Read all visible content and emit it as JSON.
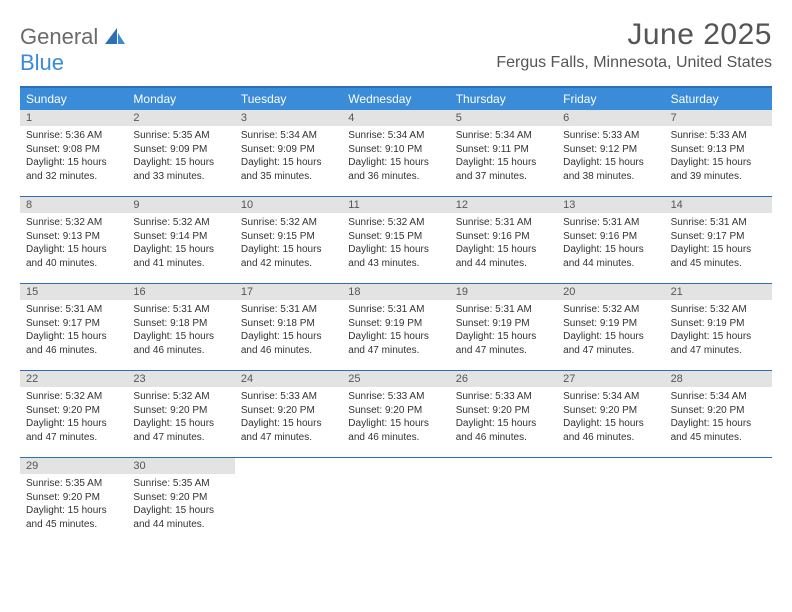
{
  "logo": {
    "text1": "General",
    "text2": "Blue"
  },
  "title": "June 2025",
  "location": "Fergus Falls, Minnesota, United States",
  "colors": {
    "header_bg": "#3a8bd8",
    "border": "#2d6fb5",
    "daynum_bg": "#e3e3e3",
    "text": "#333333",
    "title_text": "#555555"
  },
  "dows": [
    "Sunday",
    "Monday",
    "Tuesday",
    "Wednesday",
    "Thursday",
    "Friday",
    "Saturday"
  ],
  "weeks": [
    [
      {
        "n": "1",
        "sr": "5:36 AM",
        "ss": "9:08 PM",
        "dl": "15 hours and 32 minutes."
      },
      {
        "n": "2",
        "sr": "5:35 AM",
        "ss": "9:09 PM",
        "dl": "15 hours and 33 minutes."
      },
      {
        "n": "3",
        "sr": "5:34 AM",
        "ss": "9:09 PM",
        "dl": "15 hours and 35 minutes."
      },
      {
        "n": "4",
        "sr": "5:34 AM",
        "ss": "9:10 PM",
        "dl": "15 hours and 36 minutes."
      },
      {
        "n": "5",
        "sr": "5:34 AM",
        "ss": "9:11 PM",
        "dl": "15 hours and 37 minutes."
      },
      {
        "n": "6",
        "sr": "5:33 AM",
        "ss": "9:12 PM",
        "dl": "15 hours and 38 minutes."
      },
      {
        "n": "7",
        "sr": "5:33 AM",
        "ss": "9:13 PM",
        "dl": "15 hours and 39 minutes."
      }
    ],
    [
      {
        "n": "8",
        "sr": "5:32 AM",
        "ss": "9:13 PM",
        "dl": "15 hours and 40 minutes."
      },
      {
        "n": "9",
        "sr": "5:32 AM",
        "ss": "9:14 PM",
        "dl": "15 hours and 41 minutes."
      },
      {
        "n": "10",
        "sr": "5:32 AM",
        "ss": "9:15 PM",
        "dl": "15 hours and 42 minutes."
      },
      {
        "n": "11",
        "sr": "5:32 AM",
        "ss": "9:15 PM",
        "dl": "15 hours and 43 minutes."
      },
      {
        "n": "12",
        "sr": "5:31 AM",
        "ss": "9:16 PM",
        "dl": "15 hours and 44 minutes."
      },
      {
        "n": "13",
        "sr": "5:31 AM",
        "ss": "9:16 PM",
        "dl": "15 hours and 44 minutes."
      },
      {
        "n": "14",
        "sr": "5:31 AM",
        "ss": "9:17 PM",
        "dl": "15 hours and 45 minutes."
      }
    ],
    [
      {
        "n": "15",
        "sr": "5:31 AM",
        "ss": "9:17 PM",
        "dl": "15 hours and 46 minutes."
      },
      {
        "n": "16",
        "sr": "5:31 AM",
        "ss": "9:18 PM",
        "dl": "15 hours and 46 minutes."
      },
      {
        "n": "17",
        "sr": "5:31 AM",
        "ss": "9:18 PM",
        "dl": "15 hours and 46 minutes."
      },
      {
        "n": "18",
        "sr": "5:31 AM",
        "ss": "9:19 PM",
        "dl": "15 hours and 47 minutes."
      },
      {
        "n": "19",
        "sr": "5:31 AM",
        "ss": "9:19 PM",
        "dl": "15 hours and 47 minutes."
      },
      {
        "n": "20",
        "sr": "5:32 AM",
        "ss": "9:19 PM",
        "dl": "15 hours and 47 minutes."
      },
      {
        "n": "21",
        "sr": "5:32 AM",
        "ss": "9:19 PM",
        "dl": "15 hours and 47 minutes."
      }
    ],
    [
      {
        "n": "22",
        "sr": "5:32 AM",
        "ss": "9:20 PM",
        "dl": "15 hours and 47 minutes."
      },
      {
        "n": "23",
        "sr": "5:32 AM",
        "ss": "9:20 PM",
        "dl": "15 hours and 47 minutes."
      },
      {
        "n": "24",
        "sr": "5:33 AM",
        "ss": "9:20 PM",
        "dl": "15 hours and 47 minutes."
      },
      {
        "n": "25",
        "sr": "5:33 AM",
        "ss": "9:20 PM",
        "dl": "15 hours and 46 minutes."
      },
      {
        "n": "26",
        "sr": "5:33 AM",
        "ss": "9:20 PM",
        "dl": "15 hours and 46 minutes."
      },
      {
        "n": "27",
        "sr": "5:34 AM",
        "ss": "9:20 PM",
        "dl": "15 hours and 46 minutes."
      },
      {
        "n": "28",
        "sr": "5:34 AM",
        "ss": "9:20 PM",
        "dl": "15 hours and 45 minutes."
      }
    ],
    [
      {
        "n": "29",
        "sr": "5:35 AM",
        "ss": "9:20 PM",
        "dl": "15 hours and 45 minutes."
      },
      {
        "n": "30",
        "sr": "5:35 AM",
        "ss": "9:20 PM",
        "dl": "15 hours and 44 minutes."
      },
      null,
      null,
      null,
      null,
      null
    ]
  ],
  "labels": {
    "sunrise": "Sunrise:",
    "sunset": "Sunset:",
    "daylight": "Daylight:"
  }
}
